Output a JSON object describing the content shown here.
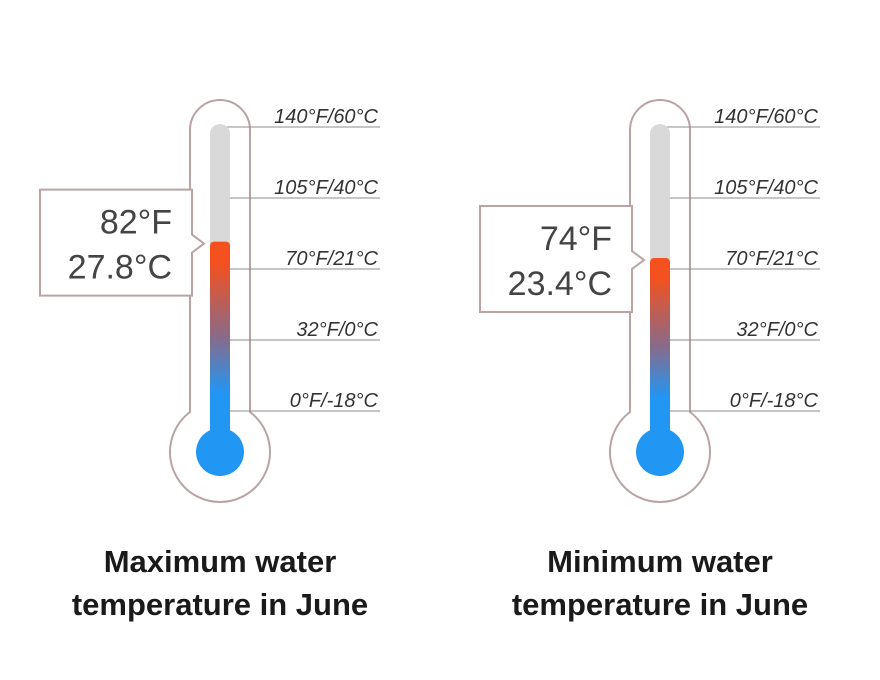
{
  "chart_data": [
    {
      "type": "thermometer",
      "title_lines": [
        "Maximum water",
        "temperature in June"
      ],
      "scale_labels": [
        "140°F/60°C",
        "105°F/40°C",
        "70°F/21°C",
        "32°F/0°C",
        "0°F/-18°C"
      ],
      "scale_celsius": [
        60,
        40,
        21,
        0,
        -18
      ],
      "value_f_label": "82°F",
      "value_c_label": "27.8°C",
      "value_celsius": 27.8
    },
    {
      "type": "thermometer",
      "title_lines": [
        "Minimum water",
        "temperature in June"
      ],
      "scale_labels": [
        "140°F/60°C",
        "105°F/40°C",
        "70°F/21°C",
        "32°F/0°C",
        "0°F/-18°C"
      ],
      "scale_celsius": [
        60,
        40,
        21,
        0,
        -18
      ],
      "value_f_label": "74°F",
      "value_c_label": "23.4°C",
      "value_celsius": 23.4
    }
  ],
  "colors": {
    "outline": "#b9a3a3",
    "tube_empty": "#d9d9d9",
    "cold": "#2196f3",
    "hot": "#f4511e",
    "mid": "#8a6a88",
    "grid": "#8c8c8c"
  }
}
